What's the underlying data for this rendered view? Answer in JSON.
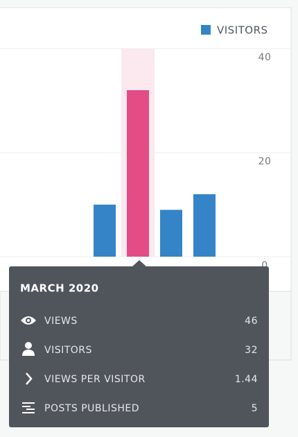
{
  "chart_data": {
    "type": "bar",
    "categories": [
      null,
      null,
      null,
      null
    ],
    "series": [
      {
        "name": "VISITORS",
        "color": "#3584c7",
        "values": [
          10,
          32,
          9,
          12
        ]
      }
    ],
    "selected_index": 1,
    "selected_color": "#e34c84",
    "ylim": [
      0,
      40
    ],
    "yticks": [
      0,
      20,
      40
    ],
    "grid": true,
    "legend": "top-right"
  },
  "tooltip": {
    "title": "MARCH 2020",
    "rows": [
      {
        "label": "VIEWS",
        "value": 46
      },
      {
        "label": "VISITORS",
        "value": 32
      },
      {
        "label": "VIEWS PER VISITOR",
        "value": 1.44
      },
      {
        "label": "POSTS PUBLISHED",
        "value": 5
      }
    ]
  }
}
